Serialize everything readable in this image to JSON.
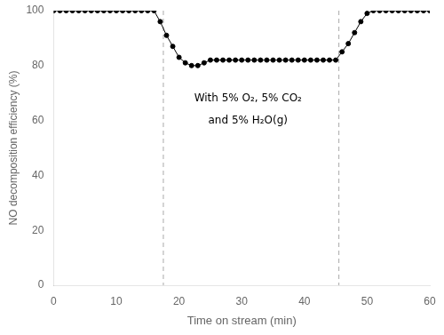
{
  "chart_data": {
    "type": "line",
    "xlabel": "Time on stream (min)",
    "ylabel": "NO decomposition efficiency (%)",
    "x": [
      0,
      1,
      2,
      3,
      4,
      5,
      6,
      7,
      8,
      9,
      10,
      11,
      12,
      13,
      14,
      15,
      16,
      17,
      18,
      19,
      20,
      21,
      22,
      23,
      24,
      25,
      26,
      27,
      28,
      29,
      30,
      31,
      32,
      33,
      34,
      35,
      36,
      37,
      38,
      39,
      40,
      41,
      42,
      43,
      44,
      45,
      46,
      47,
      48,
      49,
      50,
      51,
      52,
      53,
      54,
      55,
      56,
      57,
      58,
      59,
      60
    ],
    "values": [
      100,
      100,
      100,
      100,
      100,
      100,
      100,
      100,
      100,
      100,
      100,
      100,
      100,
      100,
      100,
      100,
      100,
      96,
      91,
      87,
      83,
      81,
      80,
      80,
      81,
      82,
      82,
      82,
      82,
      82,
      82,
      82,
      82,
      82,
      82,
      82,
      82,
      82,
      82,
      82,
      82,
      82,
      82,
      82,
      82,
      82,
      85,
      88,
      92,
      96,
      99,
      100,
      100,
      100,
      100,
      100,
      100,
      100,
      100,
      100,
      100
    ],
    "color": "black",
    "marker": "circle",
    "xlim": [
      0,
      60
    ],
    "ylim": [
      0,
      100
    ],
    "xticks": [
      0,
      10,
      20,
      30,
      40,
      50,
      60
    ],
    "yticks": [
      0,
      20,
      40,
      60,
      80,
      100
    ],
    "vlines": [
      17.5,
      45.5
    ],
    "annotations": [
      {
        "text": "With 5% O₂, 5% CO₂",
        "x": 31,
        "y": 68
      },
      {
        "text": "and 5% H₂O(g)",
        "x": 31,
        "y": 60
      }
    ],
    "grid": false
  }
}
